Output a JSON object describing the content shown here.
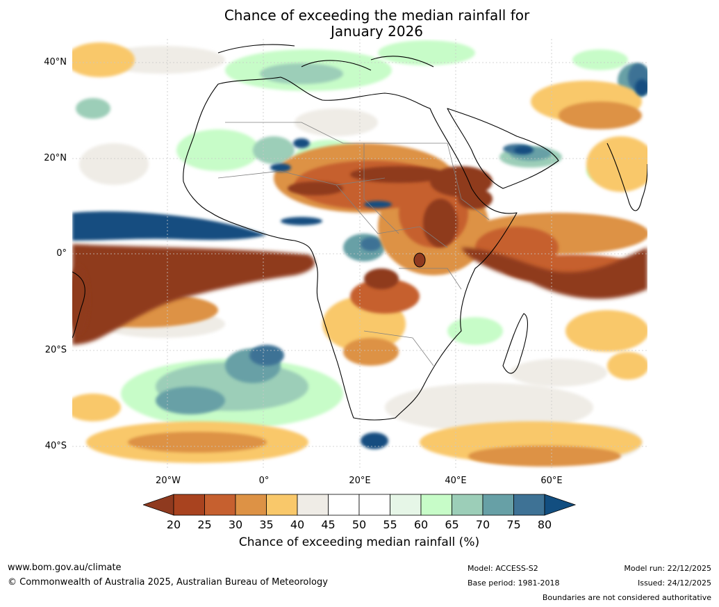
{
  "title": {
    "line1": "Chance of exceeding the median rainfall for",
    "line2": "January 2026"
  },
  "map": {
    "region": "Africa",
    "lat_labels": [
      "40°N",
      "20°N",
      "0°",
      "20°S",
      "40°S"
    ],
    "lon_labels": [
      "20°W",
      "0°",
      "20°E",
      "40°E",
      "60°E"
    ]
  },
  "colorbar": {
    "ticks": [
      "20",
      "25",
      "30",
      "35",
      "40",
      "45",
      "50",
      "55",
      "60",
      "65",
      "70",
      "75",
      "80"
    ],
    "colors": [
      "#8f3a1f",
      "#a9431f",
      "#c6602f",
      "#dd9245",
      "#f9c86a",
      "#efece6",
      "#ffffff",
      "#ffffff",
      "#e6f6e7",
      "#c7fcc8",
      "#9cceb8",
      "#67a0a6",
      "#3e7295",
      "#124e80"
    ],
    "title": "Chance of exceeding median rainfall (%)"
  },
  "footer": {
    "website": "www.bom.gov.au/climate",
    "copyright": "© Commonwealth of Australia 2025, Australian Bureau of Meteorology",
    "model": "Model: ACCESS-S2",
    "base_period": "Base period: 1981-2018",
    "model_run": "Model run: 22/12/2025",
    "issued": "Issued: 24/12/2025",
    "disclaimer": "Boundaries are not considered authoritative"
  }
}
